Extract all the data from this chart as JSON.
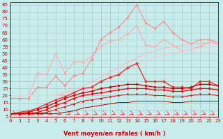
{
  "xlabel": "Vent moyen/en rafales ( km/h )",
  "background_color": "#c8ecec",
  "grid_color": "#a0c8c8",
  "x_ticks": [
    0,
    1,
    2,
    3,
    4,
    5,
    6,
    7,
    8,
    9,
    10,
    11,
    12,
    13,
    14,
    15,
    16,
    17,
    18,
    19,
    20,
    21,
    22,
    23
  ],
  "ylim": [
    5,
    87
  ],
  "xlim": [
    0,
    23
  ],
  "yticks": [
    5,
    10,
    15,
    20,
    25,
    30,
    35,
    40,
    45,
    50,
    55,
    60,
    65,
    70,
    75,
    80,
    85
  ],
  "series": [
    {
      "color": "#ff8888",
      "marker": "D",
      "markersize": 1.8,
      "linewidth": 0.8,
      "x": [
        0,
        1,
        2,
        3,
        4,
        5,
        6,
        7,
        8,
        9,
        10,
        11,
        12,
        13,
        14,
        15,
        16,
        17,
        18,
        19,
        20,
        21,
        22,
        23
      ],
      "y": [
        18,
        18,
        18,
        26,
        26,
        34,
        27,
        34,
        36,
        46,
        60,
        65,
        69,
        76,
        85,
        72,
        68,
        73,
        65,
        60,
        57,
        60,
        60,
        58
      ]
    },
    {
      "color": "#ffaaaa",
      "marker": "D",
      "markersize": 1.8,
      "linewidth": 0.8,
      "x": [
        0,
        1,
        2,
        3,
        4,
        5,
        6,
        7,
        8,
        9,
        10,
        11,
        12,
        13,
        14,
        15,
        16,
        17,
        18,
        19,
        20,
        21,
        22,
        23
      ],
      "y": [
        20,
        20,
        20,
        36,
        35,
        50,
        36,
        44,
        44,
        48,
        55,
        59,
        60,
        64,
        70,
        56,
        55,
        60,
        56,
        52,
        53,
        55,
        58,
        57
      ]
    },
    {
      "color": "#ffbbbb",
      "marker": null,
      "markersize": 0,
      "linewidth": 0.8,
      "x": [
        0,
        1,
        2,
        3,
        4,
        5,
        6,
        7,
        8,
        9,
        10,
        11,
        12,
        13,
        14,
        15,
        16,
        17,
        18,
        19,
        20,
        21,
        22,
        23
      ],
      "y": [
        20,
        20,
        20,
        20,
        20,
        20,
        22,
        24,
        27,
        30,
        33,
        37,
        40,
        44,
        47,
        50,
        52,
        54,
        55,
        56,
        57,
        57,
        58,
        58
      ]
    },
    {
      "color": "#ffcccc",
      "marker": null,
      "markersize": 0,
      "linewidth": 0.8,
      "x": [
        0,
        1,
        2,
        3,
        4,
        5,
        6,
        7,
        8,
        9,
        10,
        11,
        12,
        13,
        14,
        15,
        16,
        17,
        18,
        19,
        20,
        21,
        22,
        23
      ],
      "y": [
        20,
        20,
        20,
        20,
        20,
        20,
        21,
        22,
        24,
        27,
        30,
        33,
        36,
        39,
        42,
        45,
        47,
        49,
        51,
        52,
        53,
        54,
        55,
        55
      ]
    },
    {
      "color": "#ee3333",
      "marker": "D",
      "markersize": 2.2,
      "linewidth": 1.0,
      "x": [
        0,
        1,
        2,
        3,
        4,
        5,
        6,
        7,
        8,
        9,
        10,
        11,
        12,
        13,
        14,
        15,
        16,
        17,
        18,
        19,
        20,
        21,
        22,
        23
      ],
      "y": [
        7,
        8,
        9,
        11,
        14,
        17,
        19,
        22,
        25,
        26,
        30,
        33,
        35,
        40,
        43,
        30,
        30,
        30,
        26,
        26,
        25,
        30,
        30,
        27
      ]
    },
    {
      "color": "#cc0000",
      "marker": "D",
      "markersize": 2.0,
      "linewidth": 0.9,
      "x": [
        0,
        1,
        2,
        3,
        4,
        5,
        6,
        7,
        8,
        9,
        10,
        11,
        12,
        13,
        14,
        15,
        16,
        17,
        18,
        19,
        20,
        21,
        22,
        23
      ],
      "y": [
        7,
        7,
        8,
        10,
        12,
        15,
        18,
        20,
        22,
        23,
        25,
        26,
        27,
        28,
        28,
        27,
        26,
        26,
        25,
        25,
        26,
        28,
        28,
        27
      ]
    },
    {
      "color": "#ff0000",
      "marker": "D",
      "markersize": 2.0,
      "linewidth": 0.9,
      "x": [
        0,
        1,
        2,
        3,
        4,
        5,
        6,
        7,
        8,
        9,
        10,
        11,
        12,
        13,
        14,
        15,
        16,
        17,
        18,
        19,
        20,
        21,
        22,
        23
      ],
      "y": [
        7,
        7,
        7,
        8,
        10,
        13,
        15,
        18,
        20,
        21,
        22,
        23,
        24,
        25,
        25,
        25,
        24,
        24,
        23,
        23,
        24,
        25,
        25,
        24
      ]
    },
    {
      "color": "#dd1111",
      "marker": "D",
      "markersize": 1.6,
      "linewidth": 0.7,
      "x": [
        0,
        1,
        2,
        3,
        4,
        5,
        6,
        7,
        8,
        9,
        10,
        11,
        12,
        13,
        14,
        15,
        16,
        17,
        18,
        19,
        20,
        21,
        22,
        23
      ],
      "y": [
        7,
        7,
        7,
        7,
        8,
        10,
        12,
        14,
        16,
        17,
        18,
        19,
        20,
        21,
        21,
        21,
        20,
        20,
        19,
        19,
        20,
        21,
        21,
        20
      ]
    },
    {
      "color": "#aa0000",
      "marker": null,
      "markersize": 0,
      "linewidth": 0.7,
      "x": [
        0,
        1,
        2,
        3,
        4,
        5,
        6,
        7,
        8,
        9,
        10,
        11,
        12,
        13,
        14,
        15,
        16,
        17,
        18,
        19,
        20,
        21,
        22,
        23
      ],
      "y": [
        7,
        7,
        7,
        7,
        7,
        7,
        8,
        9,
        11,
        12,
        13,
        14,
        15,
        15,
        16,
        16,
        16,
        16,
        15,
        15,
        16,
        16,
        16,
        16
      ]
    }
  ],
  "axis_fontsize": 6,
  "tick_fontsize": 5,
  "xlabel_color": "#cc0000",
  "tick_color": "#cc0000",
  "spine_color": "#cc0000"
}
